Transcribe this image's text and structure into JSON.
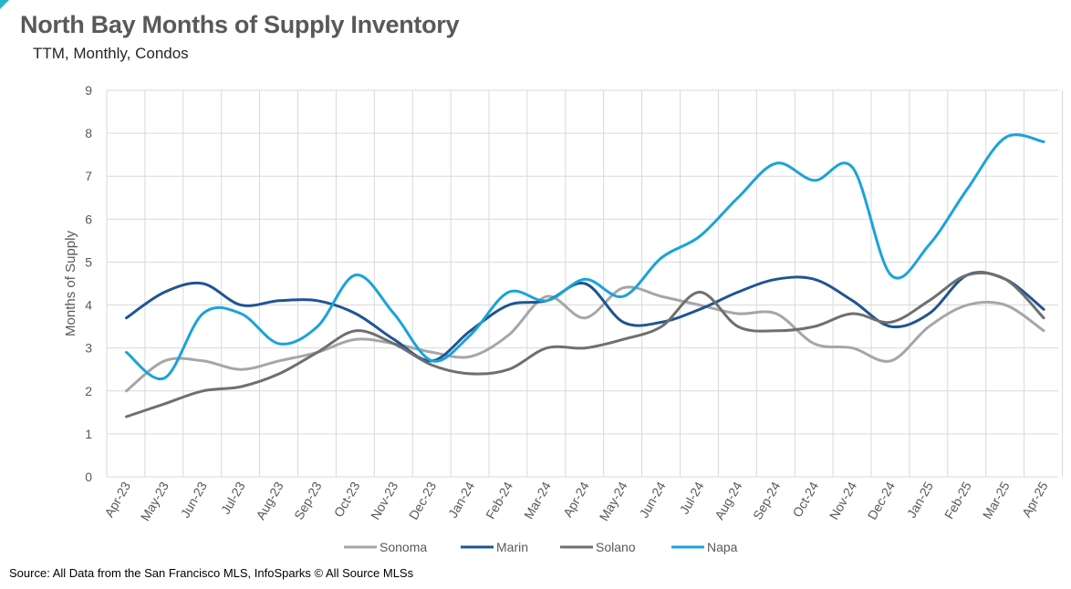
{
  "header": {
    "title": "North Bay Months of Supply Inventory",
    "subtitle": "TTM, Monthly, Condos"
  },
  "footer": {
    "source": "Source: All Data from the San Francisco MLS, InfoSparks © All Source MLSs"
  },
  "chart_data": {
    "type": "line",
    "title": "North Bay Months of Supply Inventory",
    "subtitle": "TTM, Monthly, Condos",
    "xlabel": "",
    "ylabel": "Months of Supply",
    "ylim": [
      0,
      9
    ],
    "yticks": [
      0,
      1,
      2,
      3,
      4,
      5,
      6,
      7,
      8,
      9
    ],
    "grid": true,
    "smooth": true,
    "legend_position": "bottom",
    "categories": [
      "Apr-23",
      "May-23",
      "Jun-23",
      "Jul-23",
      "Aug-23",
      "Sep-23",
      "Oct-23",
      "Nov-23",
      "Dec-23",
      "Jan-24",
      "Feb-24",
      "Mar-24",
      "Apr-24",
      "May-24",
      "Jun-24",
      "Jul-24",
      "Aug-24",
      "Sep-24",
      "Oct-24",
      "Nov-24",
      "Dec-24",
      "Jan-25",
      "Feb-25",
      "Mar-25",
      "Apr-25"
    ],
    "series": [
      {
        "name": "Sonoma",
        "color": "#a6a6a6",
        "values": [
          2.0,
          2.7,
          2.7,
          2.5,
          2.7,
          2.9,
          3.2,
          3.1,
          2.9,
          2.8,
          3.3,
          4.2,
          3.7,
          4.4,
          4.2,
          4.0,
          3.8,
          3.8,
          3.1,
          3.0,
          2.7,
          3.5,
          4.0,
          4.0,
          3.4
        ]
      },
      {
        "name": "Marin",
        "color": "#1f5592",
        "values": [
          3.7,
          4.3,
          4.5,
          4.0,
          4.1,
          4.1,
          3.8,
          3.2,
          2.7,
          3.4,
          4.0,
          4.1,
          4.5,
          3.6,
          3.6,
          3.9,
          4.3,
          4.6,
          4.6,
          4.1,
          3.5,
          3.8,
          4.7,
          4.6,
          3.9
        ]
      },
      {
        "name": "Solano",
        "color": "#6f6f6f",
        "values": [
          1.4,
          1.7,
          2.0,
          2.1,
          2.4,
          2.9,
          3.4,
          3.1,
          2.6,
          2.4,
          2.5,
          3.0,
          3.0,
          3.2,
          3.5,
          4.3,
          3.5,
          3.4,
          3.5,
          3.8,
          3.6,
          4.1,
          4.7,
          4.6,
          3.7
        ]
      },
      {
        "name": "Napa",
        "color": "#1aa3d9",
        "values": [
          2.9,
          2.3,
          3.8,
          3.8,
          3.1,
          3.5,
          4.7,
          3.8,
          2.7,
          3.3,
          4.3,
          4.1,
          4.6,
          4.2,
          5.1,
          5.6,
          6.5,
          7.3,
          6.9,
          7.2,
          4.7,
          5.4,
          6.7,
          7.9,
          7.8
        ]
      }
    ]
  }
}
